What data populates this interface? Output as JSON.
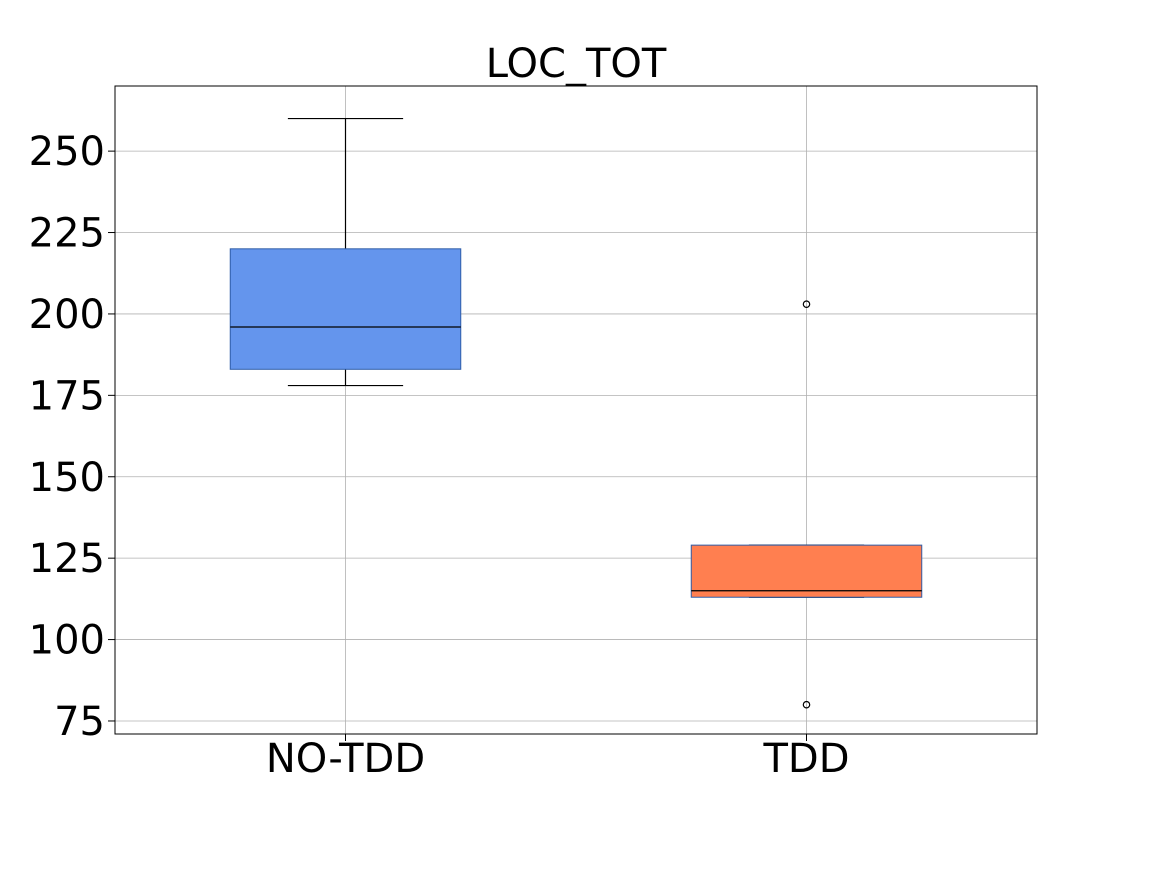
{
  "chart_data": {
    "type": "box",
    "title": "LOC_TOT",
    "xlabel": "",
    "ylabel": "",
    "ylim": [
      71,
      270
    ],
    "yticks": [
      75,
      100,
      125,
      150,
      175,
      200,
      225,
      250
    ],
    "grid": true,
    "categories": [
      "NO-TDD",
      "TDD"
    ],
    "boxes": [
      {
        "category": "NO-TDD",
        "color": "#6495ED",
        "whisker_low": 178,
        "q1": 183,
        "median": 196,
        "q3": 220,
        "whisker_high": 260,
        "outliers": []
      },
      {
        "category": "TDD",
        "color": "#FF7F50",
        "whisker_low": 113,
        "q1": 113,
        "median": 115,
        "q3": 129,
        "whisker_high": 129,
        "outliers": [
          203,
          80
        ]
      }
    ]
  }
}
